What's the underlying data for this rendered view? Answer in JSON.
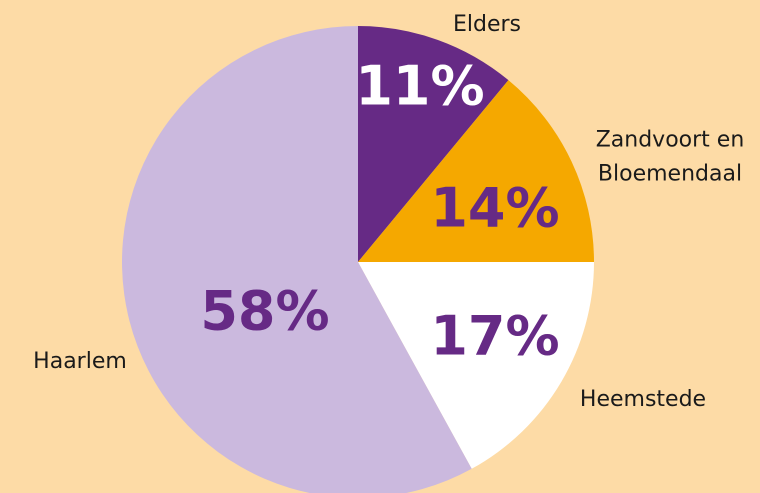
{
  "chart_data": {
    "type": "pie",
    "categories": [
      "Elders",
      "Zandvoort en Bloemendaal",
      "Heemstede",
      "Haarlem"
    ],
    "values": [
      11,
      14,
      17,
      58
    ],
    "value_labels": [
      "11%",
      "14%",
      "17%",
      "58%"
    ],
    "colors": [
      "#662a85",
      "#f5a800",
      "#ffffff",
      "#cbb9de"
    ],
    "label_colors": [
      "#ffffff",
      "#662a85",
      "#662a85",
      "#662a85"
    ],
    "background": "#fddba6"
  }
}
